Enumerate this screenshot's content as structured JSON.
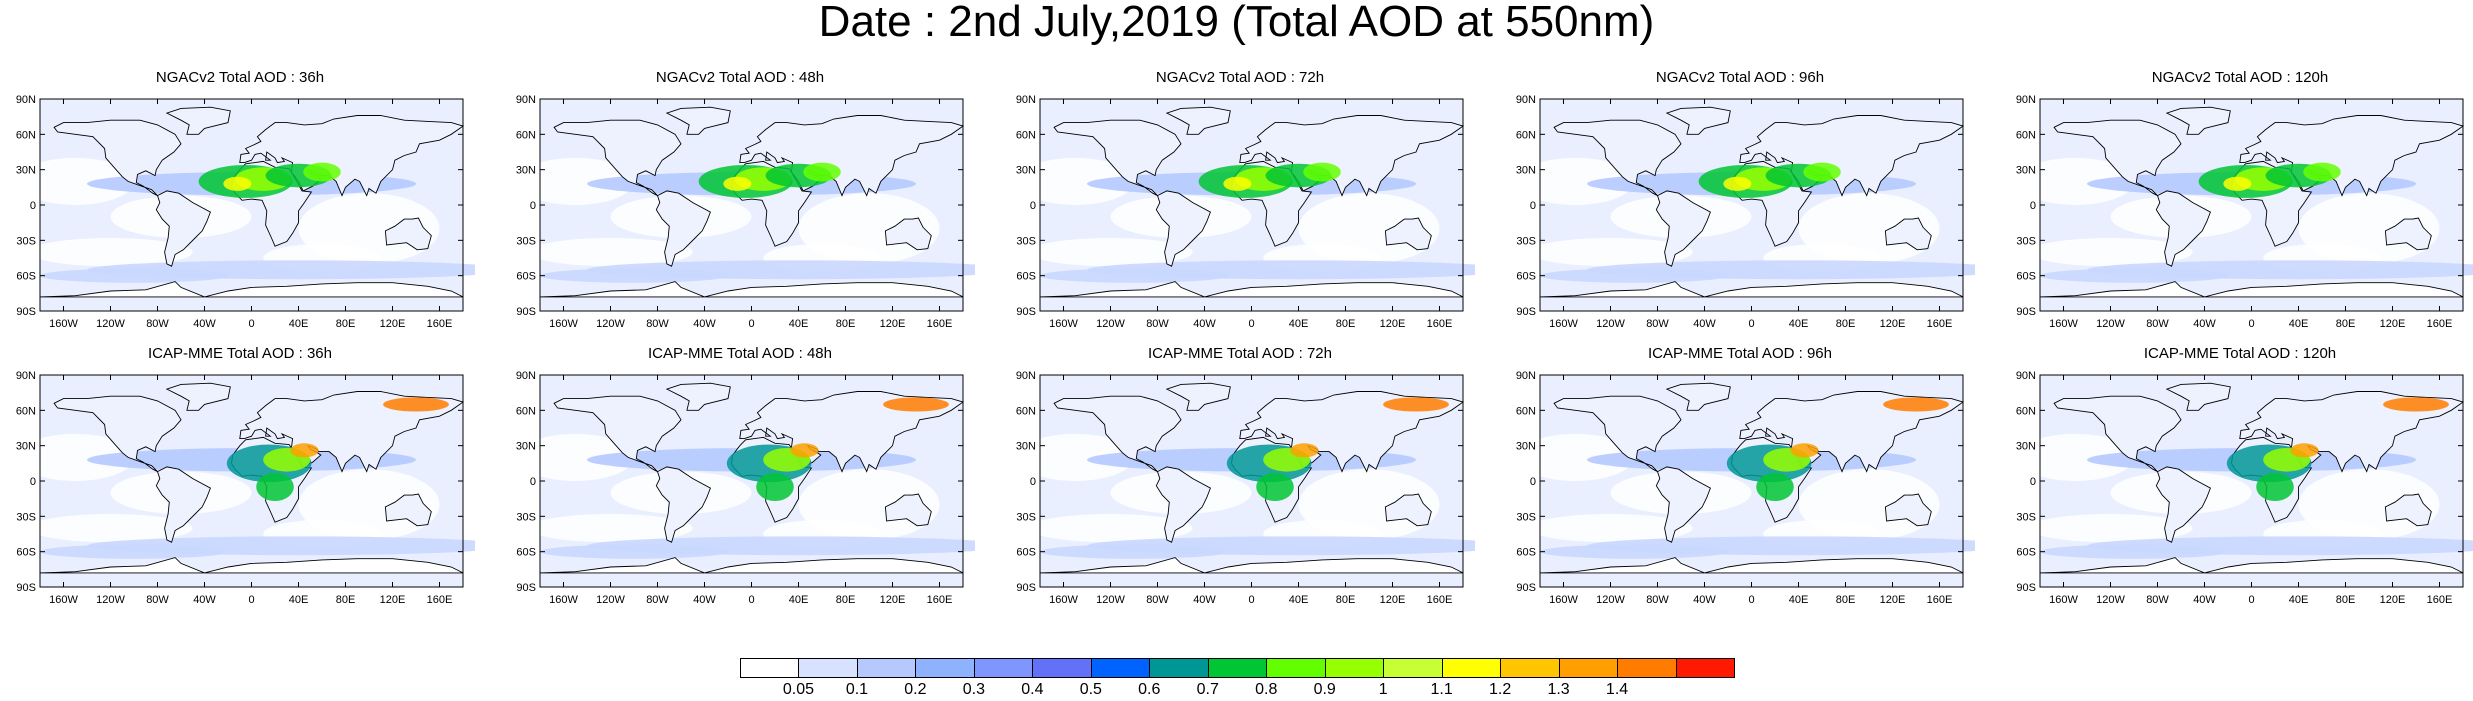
{
  "title": "Date : 2nd July,2019 (Total AOD at 550nm)",
  "lat_labels": [
    "90N",
    "60N",
    "30N",
    "0",
    "30S",
    "60S",
    "90S"
  ],
  "lon_labels": [
    "160W",
    "120W",
    "80W",
    "40W",
    "0",
    "40E",
    "80E",
    "120E",
    "160E"
  ],
  "rows": [
    {
      "model": "NGACv2",
      "panels": [
        {
          "title": "NGACv2 Total AOD : 36h"
        },
        {
          "title": "NGACv2 Total AOD : 48h"
        },
        {
          "title": "NGACv2 Total AOD : 72h"
        },
        {
          "title": "NGACv2 Total AOD : 96h"
        },
        {
          "title": "NGACv2 Total AOD : 120h"
        }
      ]
    },
    {
      "model": "ICAP-MME",
      "panels": [
        {
          "title": "ICAP-MME Total AOD : 36h"
        },
        {
          "title": "ICAP-MME Total AOD : 48h"
        },
        {
          "title": "ICAP-MME Total AOD : 72h"
        },
        {
          "title": "ICAP-MME Total AOD : 96h"
        },
        {
          "title": "ICAP-MME Total AOD : 120h"
        }
      ]
    }
  ],
  "colorbar": {
    "labels": [
      "0.05",
      "0.1",
      "0.2",
      "0.3",
      "0.4",
      "0.5",
      "0.6",
      "0.7",
      "0.8",
      "0.9",
      "1",
      "1.1",
      "1.2",
      "1.3",
      "1.4"
    ],
    "colors": [
      "#ffffff",
      "#d6e2ff",
      "#b5c9ff",
      "#8fb2ff",
      "#7f96ff",
      "#6370f8",
      "#0063ff",
      "#009696",
      "#00c633",
      "#63ff00",
      "#96ff00",
      "#c6ff33",
      "#ffff00",
      "#ffc600",
      "#ffa000",
      "#ff7c00",
      "#ff1900"
    ]
  }
}
